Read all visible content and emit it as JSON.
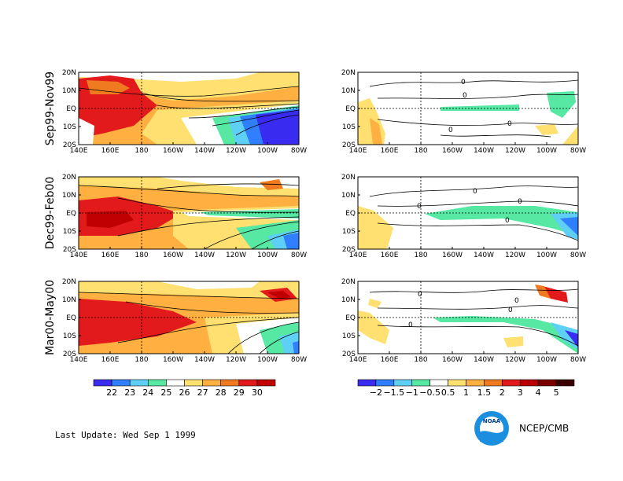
{
  "rows": [
    {
      "label": "Sep99-Nov99"
    },
    {
      "label": "Dec99-Feb00"
    },
    {
      "label": "Mar00-May00"
    }
  ],
  "lat_ticks": [
    "20N",
    "10N",
    "EQ",
    "10S",
    "20S"
  ],
  "lon_ticks": [
    "140E",
    "160E",
    "180",
    "160W",
    "140W",
    "120W",
    "100W",
    "80W"
  ],
  "contour_zero_label": "0",
  "sst_colorbar": {
    "levels": [
      "22",
      "23",
      "24",
      "25",
      "26",
      "27",
      "28",
      "29",
      "30"
    ],
    "colors": [
      "#3a2bf0",
      "#2f7fff",
      "#5fd0f5",
      "#57e8a3",
      "#ffffff",
      "#ffe070",
      "#ffb040",
      "#f07a20",
      "#e31a1c",
      "#c00000"
    ]
  },
  "anom_colorbar": {
    "labels": [
      "−2",
      "−1.5",
      "−1",
      "−0.5",
      "0.5",
      "1",
      "1.5",
      "2",
      "3",
      "4",
      "5"
    ],
    "colors": [
      "#3a2bf0",
      "#2f7fff",
      "#5fd0f5",
      "#57e8a3",
      "#ffffff",
      "#ffe070",
      "#ffb040",
      "#f07a20",
      "#e31a1c",
      "#b80000",
      "#7a0000",
      "#3a0000"
    ]
  },
  "footer": {
    "last_update": "Last Update:  Wed Sep 1 1999",
    "brand": "NCEP/CMB",
    "logo_text": "NOAA"
  }
}
